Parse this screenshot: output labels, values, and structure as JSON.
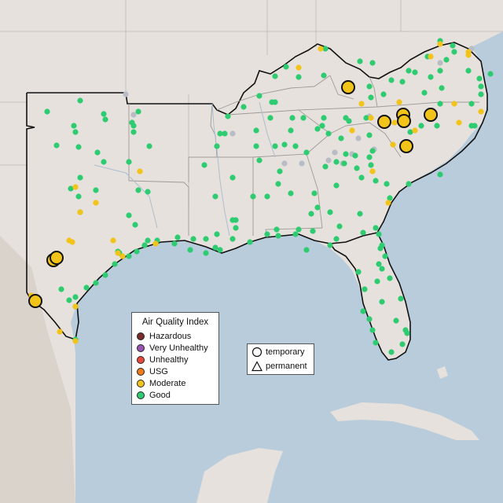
{
  "map": {
    "water_color": "#b8ccdc",
    "land_color": "#e6e1dc",
    "terrain_color": "#d9d3cb"
  },
  "legend_aqi": {
    "title": "Air Quality Index",
    "items": [
      {
        "label": "Hazardous",
        "color": "#7a2a2a"
      },
      {
        "label": "Very Unhealthy",
        "color": "#9a52b0"
      },
      {
        "label": "Unhealthy",
        "color": "#e8483a"
      },
      {
        "label": "USG",
        "color": "#ee7a1c"
      },
      {
        "label": "Moderate",
        "color": "#f2c318"
      },
      {
        "label": "Good",
        "color": "#2ecc71"
      }
    ]
  },
  "legend_type": {
    "items": [
      {
        "label": "temporary",
        "icon": "circle-icon"
      },
      {
        "label": "permanent",
        "icon": "triangle-icon"
      }
    ]
  }
}
